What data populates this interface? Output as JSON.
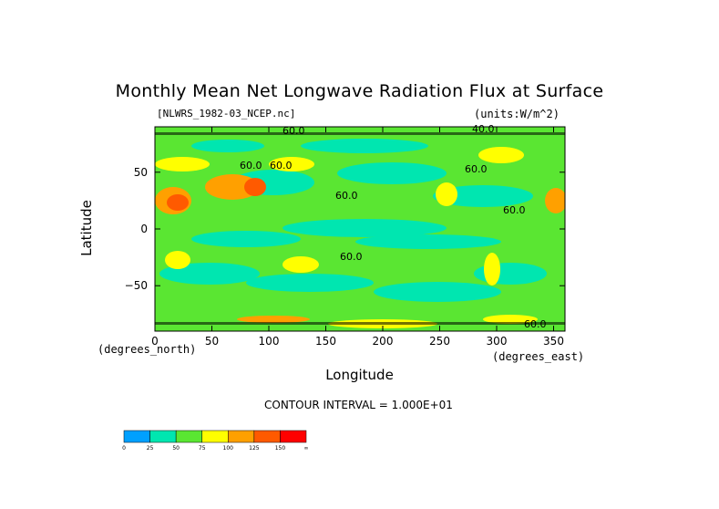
{
  "chart_data": {
    "type": "heatmap",
    "title": "Monthly Mean Net Longwave Radiation Flux at Surface",
    "file_label": "[NLWRS_1982-03_NCEP.nc]",
    "units_label": "(units:W/m^2)",
    "xlabel": "Longitude",
    "ylabel": "Latitude",
    "x_unit_label": "(degrees_east)",
    "y_unit_label": "(degrees_north)",
    "contour_interval": "CONTOUR INTERVAL = 1.000E+01",
    "xlim": [
      0,
      360
    ],
    "ylim": [
      -90,
      90
    ],
    "x_ticks": [
      0,
      50,
      100,
      150,
      200,
      250,
      300,
      350
    ],
    "y_ticks": [
      50,
      0,
      -50
    ],
    "y_tick_labels": [
      "50",
      "0",
      "−50"
    ],
    "contour_labels": [
      "60.0",
      "60.0",
      "60.0",
      "60.0",
      "60.0",
      "60.0",
      "60.0",
      "40.0",
      "60.0"
    ],
    "legend": {
      "levels": [
        "0",
        "25",
        "50",
        "75",
        "100",
        "125",
        "150",
        "∞"
      ],
      "colors": [
        "#00a0ff",
        "#00e6b0",
        "#5ae632",
        "#ffff00",
        "#ffa000",
        "#ff5a00",
        "#ff0000"
      ]
    }
  }
}
